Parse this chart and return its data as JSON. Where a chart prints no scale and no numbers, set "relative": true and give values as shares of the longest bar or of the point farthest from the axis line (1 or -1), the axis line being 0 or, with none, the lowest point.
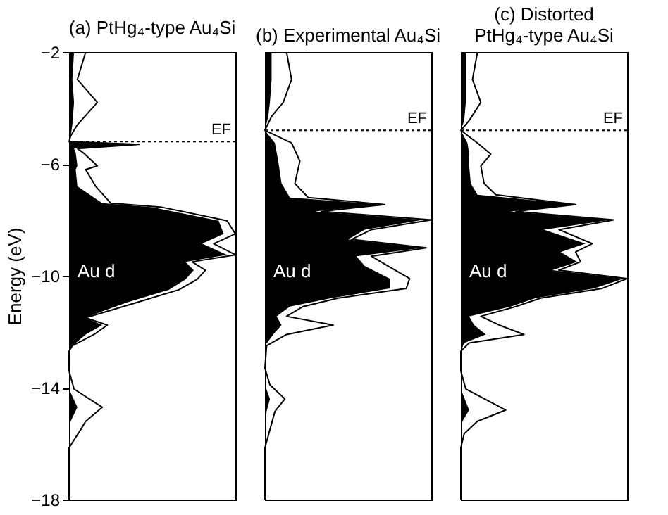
{
  "chart_data": [
    {
      "type": "area",
      "title": "(a) PtHg₄-type Au₄Si",
      "ylabel": "Energy (eV)",
      "orientation": "horizontal",
      "relative": true,
      "ylim": [
        -18,
        -2
      ],
      "yticks": [
        -18,
        -14,
        -10,
        -6,
        -2
      ],
      "tick_labels": "y",
      "x": [
        -2,
        -2.98,
        -3.8,
        -4.6,
        -5.0,
        -5.2,
        -5.3,
        -5.45,
        -5.6,
        -6.07,
        -6.2,
        -6.8,
        -7.4,
        -7.55,
        -8.03,
        -8.5,
        -8.85,
        -9.25,
        -9.5,
        -9.8,
        -10.13,
        -10.5,
        -10.95,
        -11.27,
        -11.5,
        -11.76,
        -12.1,
        -12.5,
        -12.7,
        -13.4,
        -14.05,
        -14.7,
        -15.2,
        -15.5,
        -16.15,
        -18
      ],
      "series": [
        {
          "color": "#000000",
          "values": [
            0.03,
            0.02,
            0.03,
            0.02,
            0.01,
            0,
            0.4,
            0.03,
            0.04,
            0.05,
            0.04,
            0.05,
            0.2,
            0.5,
            0.9,
            0.93,
            0.8,
            0.95,
            0.7,
            0.75,
            0.7,
            0.6,
            0.35,
            0.2,
            0.1,
            0.2,
            0.1,
            0.02,
            0,
            0,
            0,
            0.05,
            0.01,
            0,
            0,
            0
          ]
        },
        {
          "type": "line",
          "color": "#000000",
          "values": [
            0.1,
            0.05,
            0.17,
            0.05,
            0.01,
            0,
            0.42,
            0.05,
            0.085,
            0.17,
            0.1,
            0.16,
            0.25,
            0.56,
            0.95,
            1.0,
            0.87,
            1.0,
            0.74,
            0.82,
            0.77,
            0.66,
            0.41,
            0.23,
            0.1,
            0.23,
            0.15,
            0.02,
            0,
            0,
            0.03,
            0.2,
            0.1,
            0.07,
            0,
            0
          ]
        }
      ],
      "ref_lines": [
        {
          "axis": "y",
          "value": -5.2,
          "label": "EF",
          "line_style": "dotted"
        }
      ],
      "annotations": [
        "Au d"
      ]
    },
    {
      "type": "area",
      "title": "(b) Experimental Au₄Si",
      "orientation": "horizontal",
      "relative": true,
      "ylim": [
        -18,
        -2
      ],
      "yticks": [
        -18,
        -14,
        -10,
        -6,
        -2
      ],
      "tick_labels": false,
      "x": [
        -2,
        -2.98,
        -3.8,
        -4.3,
        -4.8,
        -5.25,
        -5.9,
        -6.7,
        -7.2,
        -7.45,
        -7.7,
        -8.0,
        -8.35,
        -8.7,
        -9.0,
        -9.3,
        -9.65,
        -10.1,
        -10.45,
        -10.8,
        -11.1,
        -11.45,
        -11.76,
        -12.1,
        -12.5,
        -13.3,
        -13.9,
        -14.4,
        -14.85,
        -15.5,
        -16.15,
        -18
      ],
      "series": [
        {
          "color": "#000000",
          "values": [
            0.04,
            0.04,
            0.03,
            0.02,
            0,
            0.06,
            0.08,
            0.1,
            0.15,
            0.7,
            0.3,
            0.95,
            0.6,
            0.5,
            0.95,
            0.55,
            0.6,
            0.75,
            0.75,
            0.4,
            0.15,
            0.07,
            0.1,
            0.05,
            0,
            0,
            0,
            0.03,
            0.01,
            0,
            0,
            0
          ]
        },
        {
          "type": "line",
          "color": "#000000",
          "values": [
            0.13,
            0.16,
            0.11,
            0.04,
            0,
            0.16,
            0.21,
            0.18,
            0.26,
            0.72,
            0.34,
            1.0,
            0.64,
            0.52,
            0.97,
            0.64,
            0.74,
            0.87,
            0.85,
            0.44,
            0.23,
            0.13,
            0.41,
            0.13,
            0.01,
            0,
            0.03,
            0.12,
            0.06,
            0.03,
            0,
            0
          ]
        }
      ],
      "ref_lines": [
        {
          "axis": "y",
          "value": -4.8,
          "label": "EF",
          "line_style": "dotted"
        }
      ],
      "annotations": [
        "Au d"
      ]
    },
    {
      "type": "area",
      "title": "(c) Distorted PtHg₄-type Au₄Si",
      "orientation": "horizontal",
      "relative": true,
      "ylim": [
        -18,
        -2
      ],
      "yticks": [
        -18,
        -14,
        -10,
        -6,
        -2
      ],
      "tick_labels": false,
      "x": [
        -2,
        -2.98,
        -3.8,
        -4.45,
        -4.8,
        -5.25,
        -5.65,
        -6.07,
        -6.7,
        -7.1,
        -7.45,
        -7.7,
        -8.0,
        -8.35,
        -8.85,
        -9.15,
        -9.5,
        -9.8,
        -10.1,
        -10.45,
        -10.8,
        -11.1,
        -11.45,
        -11.76,
        -12.1,
        -12.4,
        -12.7,
        -13.4,
        -14.05,
        -14.8,
        -15.2,
        -15.65,
        -16.15,
        -18
      ],
      "series": [
        {
          "color": "#000000",
          "values": [
            0.03,
            0.03,
            0.03,
            0.02,
            0,
            0.04,
            0.05,
            0.05,
            0.06,
            0.1,
            0.7,
            0.3,
            0.9,
            0.5,
            0.75,
            0.6,
            0.7,
            0.55,
            0.98,
            0.8,
            0.45,
            0.3,
            0.05,
            0.08,
            0.15,
            0.02,
            0,
            0,
            0,
            0.05,
            0.01,
            0,
            0,
            0
          ]
        },
        {
          "type": "line",
          "color": "#000000",
          "values": [
            0.1,
            0.07,
            0.12,
            0.05,
            0,
            0.1,
            0.18,
            0.12,
            0.14,
            0.21,
            0.69,
            0.33,
            0.92,
            0.59,
            0.79,
            0.69,
            0.72,
            0.59,
            1.0,
            0.85,
            0.48,
            0.33,
            0.12,
            0.23,
            0.38,
            0.05,
            0,
            0,
            0.03,
            0.27,
            0.1,
            0.02,
            0,
            0
          ]
        }
      ],
      "ref_lines": [
        {
          "axis": "y",
          "value": -4.8,
          "label": "EF",
          "line_style": "dotted"
        }
      ],
      "annotations": [
        "Au d"
      ]
    }
  ]
}
